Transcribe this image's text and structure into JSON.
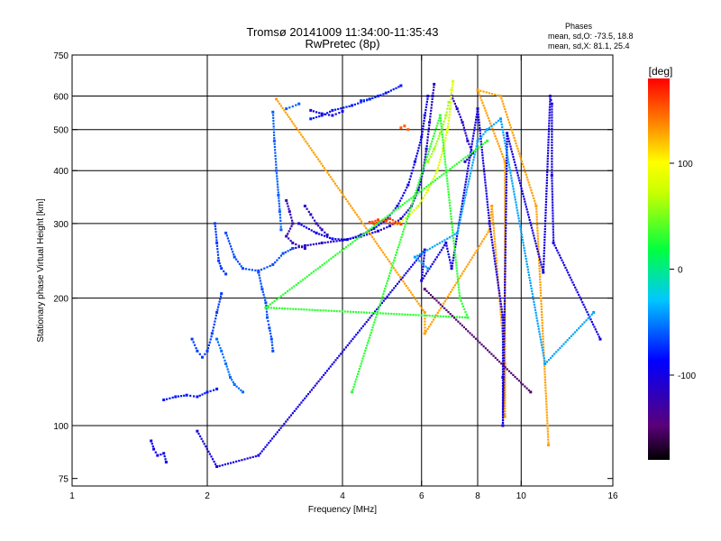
{
  "chart_data": {
    "type": "scatter",
    "title": "Tromsø 20141009 11:34:00-11:35:43",
    "subtitle": "RwPretec (8p)",
    "xlabel": "Frequency [MHz]",
    "ylabel": "Stationary phase Virtual Height [km]",
    "x_scale": "log",
    "y_scale": "log",
    "xlim": [
      1,
      16
    ],
    "ylim": [
      72,
      750
    ],
    "x_ticks": [
      1,
      2,
      4,
      6,
      8,
      10,
      16
    ],
    "x_tick_labels": [
      "1",
      "2",
      "4",
      "6",
      "8",
      "10",
      "16"
    ],
    "x_grid": [
      2,
      4,
      6,
      8,
      10
    ],
    "y_ticks": [
      75,
      100,
      200,
      300,
      400,
      500,
      600,
      750
    ],
    "y_tick_labels": [
      "75",
      "100",
      "200",
      "300",
      "400",
      "500",
      "600",
      "750"
    ],
    "y_grid": [
      100,
      200,
      300,
      400,
      500,
      600
    ],
    "grid": true,
    "annotation": {
      "title": "Phases",
      "line1": "mean, sd,O: -73.5, 18.8",
      "line2": "mean, sd,X:  81.1, 25.4"
    },
    "colorbar": {
      "label": "[deg]",
      "range": [
        -180,
        180
      ],
      "ticks": [
        100,
        0,
        -100
      ],
      "tick_labels": [
        "100",
        "0",
        "-100"
      ],
      "colormap": "rainbow: black/purple (-180) → blue → cyan → green (0) → yellow → orange → red (180)"
    },
    "series": [
      {
        "mode": "O",
        "traces": [
          {
            "phase": -110,
            "points": [
              [
                3.1,
                262
              ],
              [
                3.3,
                266
              ],
              [
                3.6,
                270
              ],
              [
                4.0,
                274
              ],
              [
                4.4,
                280
              ],
              [
                4.8,
                288
              ],
              [
                5.1,
                296
              ],
              [
                5.4,
                308
              ],
              [
                5.7,
                330
              ],
              [
                5.9,
                360
              ],
              [
                6.05,
                400
              ],
              [
                6.15,
                450
              ],
              [
                6.25,
                520
              ],
              [
                6.35,
                600
              ],
              [
                6.4,
                640
              ]
            ]
          },
          {
            "phase": -95,
            "points": [
              [
                3.2,
                300
              ],
              [
                3.5,
                285
              ],
              [
                3.8,
                276
              ],
              [
                4.1,
                275
              ],
              [
                4.4,
                282
              ],
              [
                4.7,
                292
              ],
              [
                5.0,
                306
              ],
              [
                5.3,
                330
              ],
              [
                5.6,
                370
              ],
              [
                5.8,
                420
              ],
              [
                6.0,
                480
              ],
              [
                6.1,
                540
              ],
              [
                6.2,
                600
              ]
            ]
          },
          {
            "phase": -115,
            "points": [
              [
                3.3,
                330
              ],
              [
                3.4,
                315
              ],
              [
                3.5,
                300
              ],
              [
                3.6,
                290
              ],
              [
                3.7,
                282
              ]
            ]
          },
          {
            "phase": -120,
            "points": [
              [
                3.0,
                340
              ],
              [
                3.05,
                320
              ],
              [
                3.1,
                300
              ],
              [
                3.0,
                280
              ],
              [
                3.1,
                270
              ],
              [
                3.3,
                262
              ]
            ]
          },
          {
            "phase": -65,
            "points": [
              [
                2.2,
                285
              ],
              [
                2.3,
                250
              ],
              [
                2.4,
                235
              ],
              [
                2.6,
                232
              ],
              [
                2.8,
                240
              ],
              [
                2.95,
                255
              ],
              [
                3.1,
                262
              ]
            ]
          },
          {
            "phase": -70,
            "points": [
              [
                2.08,
                300
              ],
              [
                2.1,
                270
              ],
              [
                2.12,
                245
              ],
              [
                2.15,
                235
              ],
              [
                2.2,
                228
              ]
            ]
          },
          {
            "phase": -60,
            "points": [
              [
                2.8,
                550
              ],
              [
                2.82,
                470
              ],
              [
                2.85,
                400
              ],
              [
                2.88,
                350
              ],
              [
                2.9,
                320
              ],
              [
                2.92,
                290
              ]
            ]
          },
          {
            "phase": -65,
            "points": [
              [
                2.6,
                230
              ],
              [
                2.65,
                210
              ],
              [
                2.7,
                195
              ],
              [
                2.72,
                180
              ],
              [
                2.75,
                170
              ],
              [
                2.78,
                160
              ],
              [
                2.8,
                150
              ]
            ]
          },
          {
            "phase": -55,
            "points": [
              [
                2.1,
                160
              ],
              [
                2.15,
                150
              ],
              [
                2.2,
                140
              ],
              [
                2.25,
                130
              ],
              [
                2.3,
                125
              ],
              [
                2.4,
                120
              ]
            ]
          },
          {
            "phase": -70,
            "points": [
              [
                1.85,
                160
              ],
              [
                1.9,
                150
              ],
              [
                1.95,
                145
              ],
              [
                2.0,
                150
              ],
              [
                2.05,
                165
              ],
              [
                2.1,
                185
              ],
              [
                2.15,
                205
              ]
            ]
          },
          {
            "phase": -80,
            "points": [
              [
                1.6,
                115
              ],
              [
                1.7,
                117
              ],
              [
                1.8,
                118
              ],
              [
                1.9,
                117
              ],
              [
                2.0,
                120
              ],
              [
                2.1,
                122
              ]
            ]
          },
          {
            "phase": -95,
            "points": [
              [
                1.5,
                92
              ],
              [
                1.52,
                88
              ],
              [
                1.55,
                85
              ],
              [
                1.6,
                86
              ],
              [
                1.62,
                82
              ]
            ]
          },
          {
            "phase": -80,
            "points": [
              [
                3.4,
                530
              ],
              [
                3.6,
                540
              ],
              [
                3.8,
                555
              ],
              [
                4.2,
                570
              ],
              [
                4.6,
                590
              ],
              [
                5.0,
                610
              ],
              [
                5.4,
                635
              ]
            ]
          },
          {
            "phase": -100,
            "points": [
              [
                3.4,
                555
              ],
              [
                3.6,
                545
              ],
              [
                3.8,
                540
              ],
              [
                4.0,
                552
              ]
            ]
          },
          {
            "phase": -60,
            "points": [
              [
                3.0,
                560
              ],
              [
                3.2,
                575
              ]
            ]
          },
          {
            "phase": -75,
            "points": [
              [
                4.4,
                585
              ],
              [
                4.6,
                590
              ],
              [
                4.8,
                600
              ]
            ]
          },
          {
            "phase": -110,
            "points": [
              [
                7.0,
                600
              ],
              [
                7.2,
                560
              ],
              [
                7.4,
                520
              ],
              [
                7.6,
                470
              ],
              [
                7.8,
                440
              ],
              [
                7.5,
                420
              ]
            ]
          }
        ]
      },
      {
        "mode": "X",
        "traces": [
          {
            "phase": 80,
            "points": [
              [
                5.3,
                300
              ],
              [
                5.6,
                312
              ],
              [
                5.9,
                330
              ],
              [
                6.2,
                360
              ],
              [
                6.5,
                400
              ],
              [
                6.7,
                450
              ],
              [
                6.85,
                500
              ],
              [
                6.95,
                560
              ],
              [
                7.0,
                620
              ],
              [
                7.05,
                650
              ]
            ]
          },
          {
            "phase": 60,
            "points": [
              [
                6.2,
                420
              ],
              [
                6.4,
                450
              ],
              [
                6.6,
                490
              ],
              [
                6.8,
                540
              ],
              [
                6.9,
                580
              ]
            ]
          },
          {
            "phase": 160,
            "points": [
              [
                4.6,
                302
              ],
              [
                4.8,
                306
              ],
              [
                5.0,
                304
              ],
              [
                5.2,
                300
              ],
              [
                5.4,
                299
              ],
              [
                5.1,
                308
              ],
              [
                4.7,
                300
              ]
            ]
          },
          {
            "phase": 150,
            "points": [
              [
                5.4,
                505
              ],
              [
                5.5,
                510
              ],
              [
                5.6,
                500
              ]
            ]
          }
        ]
      },
      {
        "mode": "scattered",
        "traces": [
          {
            "phase": 130,
            "points": [
              [
                2.85,
                590
              ],
              [
                6.1,
                185
              ],
              [
                6.1,
                165
              ],
              [
                8.5,
                290
              ],
              [
                8.6,
                330
              ],
              [
                9.2,
                140
              ],
              [
                9.2,
                105
              ],
              [
                9.2,
                420
              ],
              [
                8.0,
                620
              ],
              [
                9.0,
                600
              ],
              [
                10.8,
                330
              ],
              [
                11.5,
                90
              ]
            ]
          },
          {
            "phase": -100,
            "points": [
              [
                1.9,
                97
              ],
              [
                2.1,
                80
              ],
              [
                2.6,
                85
              ],
              [
                6.1,
                260
              ],
              [
                6.0,
                220
              ],
              [
                6.8,
                270
              ],
              [
                7.0,
                235
              ],
              [
                8.0,
                560
              ],
              [
                8.5,
                300
              ],
              [
                9.1,
                180
              ],
              [
                9.1,
                130
              ],
              [
                9.1,
                100
              ],
              [
                9.3,
                490
              ],
              [
                11.2,
                230
              ],
              [
                11.6,
                600
              ],
              [
                11.7,
                575
              ],
              [
                11.7,
                390
              ],
              [
                11.8,
                270
              ],
              [
                15.0,
                160
              ]
            ]
          },
          {
            "phase": -40,
            "points": [
              [
                6.2,
                235
              ],
              [
                5.8,
                250
              ],
              [
                7.2,
                285
              ],
              [
                8.0,
                470
              ],
              [
                8.4,
                500
              ],
              [
                9.0,
                530
              ],
              [
                11.3,
                140
              ],
              [
                14.5,
                185
              ]
            ]
          },
          {
            "phase": 30,
            "points": [
              [
                4.2,
                120
              ],
              [
                6.6,
                540
              ],
              [
                7.3,
                200
              ],
              [
                7.6,
                180
              ],
              [
                2.7,
                190
              ],
              [
                8.4,
                470
              ]
            ]
          },
          {
            "phase": -150,
            "points": [
              [
                6.1,
                210
              ],
              [
                10.5,
                120
              ]
            ]
          }
        ]
      }
    ]
  }
}
